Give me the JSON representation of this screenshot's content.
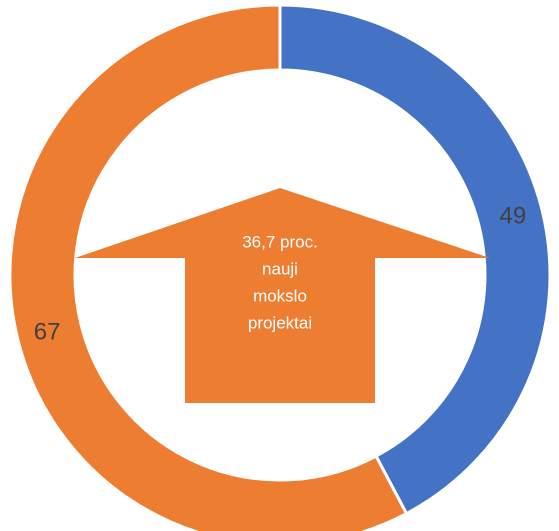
{
  "chart_data": {
    "type": "donut",
    "values": [
      49,
      67
    ],
    "colors": [
      "#4472c4",
      "#ed7d31"
    ],
    "annotation": [
      "36,7 proc.",
      "nauji",
      "mokslo",
      "projektai"
    ],
    "annotation_color": "#ed7d31"
  }
}
